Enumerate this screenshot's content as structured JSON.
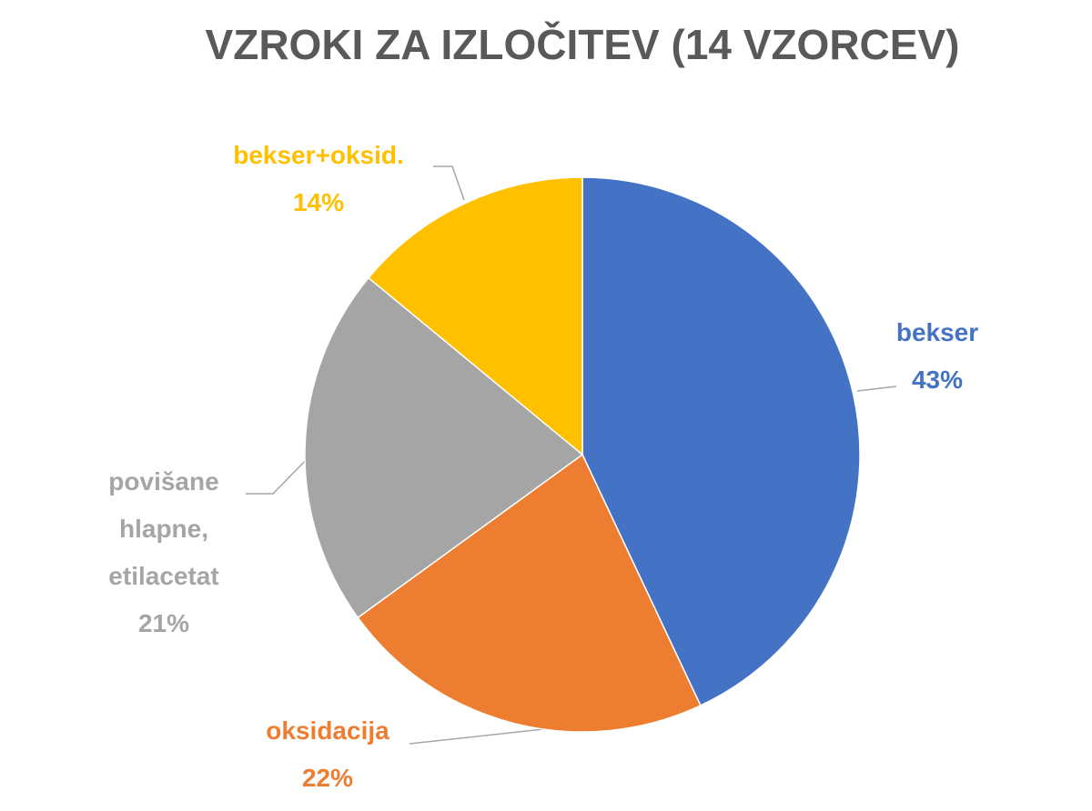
{
  "chart_data": {
    "type": "pie",
    "title": "VZROKI ZA IZLOČITEV (14 VZORCEV)",
    "categories": [
      "bekser",
      "oksidacija",
      "povišane hlapne, etilacetat",
      "bekser+oksid."
    ],
    "values": [
      43,
      22,
      21,
      14
    ],
    "value_labels": [
      "43%",
      "22%",
      "21%",
      "14%"
    ],
    "colors": [
      "#4472c4",
      "#ed7d31",
      "#a5a5a5",
      "#ffc000"
    ]
  }
}
